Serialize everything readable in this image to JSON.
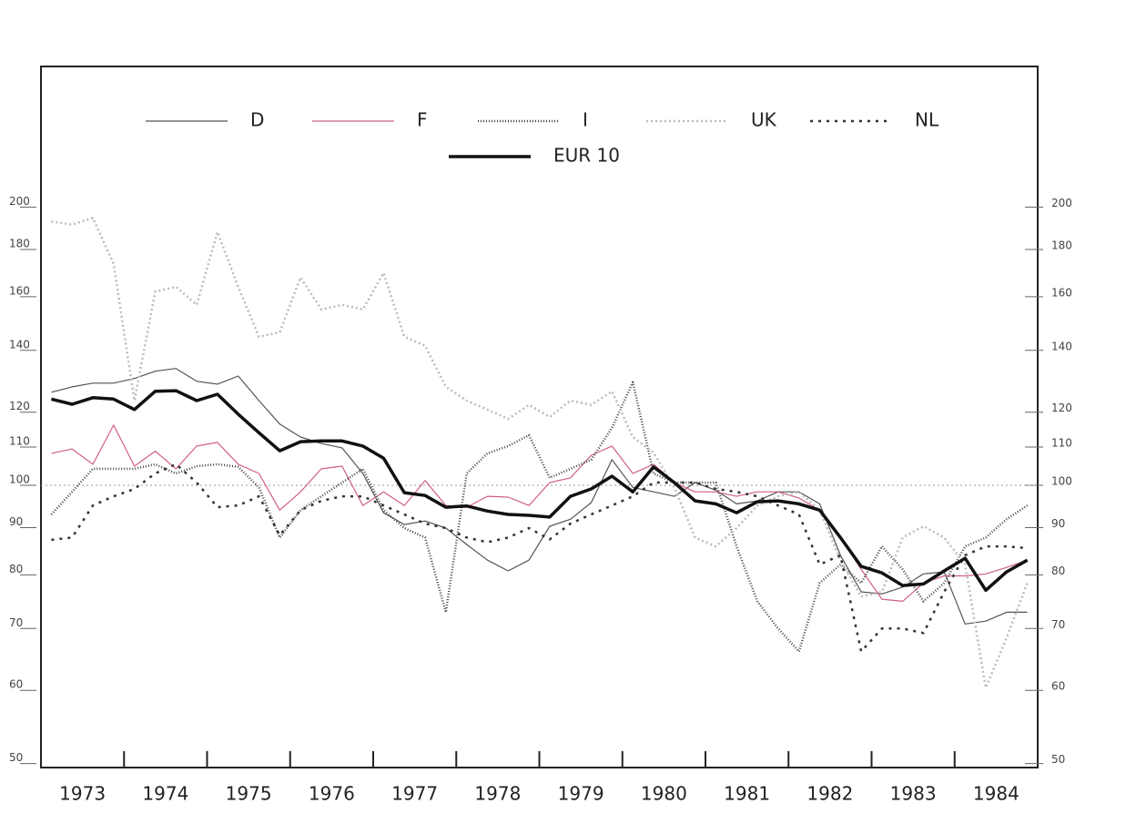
{
  "chart_data": {
    "type": "line",
    "x": [
      1973.125,
      1973.375,
      1973.625,
      1973.875,
      1974.125,
      1974.375,
      1974.625,
      1974.875,
      1975.125,
      1975.375,
      1975.625,
      1975.875,
      1976.125,
      1976.375,
      1976.625,
      1976.875,
      1977.125,
      1977.375,
      1977.625,
      1977.875,
      1978.125,
      1978.375,
      1978.625,
      1978.875,
      1979.125,
      1979.375,
      1979.625,
      1979.875,
      1980.125,
      1980.375,
      1980.625,
      1980.875,
      1981.125,
      1981.375,
      1981.625,
      1981.875,
      1982.125,
      1982.375,
      1982.625,
      1982.875,
      1983.125,
      1983.375,
      1983.625,
      1983.875,
      1984.125,
      1984.375,
      1984.625,
      1984.875
    ],
    "xlim": [
      1973,
      1985
    ],
    "xticks": [
      1973,
      1974,
      1975,
      1976,
      1977,
      1978,
      1979,
      1980,
      1981,
      1982,
      1983,
      1984
    ],
    "log_scale": true,
    "ylim": [
      49.5,
      284
    ],
    "yticks": [
      50,
      60,
      70,
      80,
      90,
      100,
      110,
      120,
      140,
      160,
      180,
      200
    ],
    "reference_line": 100,
    "series": [
      {
        "name": "D",
        "color": "#555555",
        "style": "solid",
        "values": [
          126.1,
          127.8,
          129,
          129,
          130.5,
          132.9,
          133.8,
          129.6,
          128.7,
          131.3,
          123.5,
          116.5,
          112.8,
          111,
          109.8,
          103,
          93.4,
          90.7,
          91.5,
          89.9,
          86.3,
          83,
          80.8,
          83,
          90.3,
          91.9,
          95.8,
          106.6,
          99.5,
          98.4,
          97.3,
          100.7,
          98.8,
          95.5,
          96.2,
          98.4,
          98.4,
          95.5,
          84,
          76.7,
          76.3,
          77.6,
          80.2,
          80.6,
          70.8,
          71.3,
          72.9,
          72.9
        ]
      },
      {
        "name": "F",
        "color": "#d0607f",
        "style": "solid",
        "values": [
          108.3,
          109.5,
          105.4,
          116.2,
          104.9,
          108.9,
          104.2,
          110.3,
          111.3,
          105.4,
          103,
          94,
          98.4,
          104.2,
          104.9,
          95.1,
          98.4,
          95.1,
          101.2,
          95.1,
          94.7,
          97.3,
          97.1,
          95.1,
          100.7,
          101.9,
          107.8,
          110.3,
          103,
          105.4,
          100.7,
          98.4,
          98.4,
          97.3,
          98.4,
          98.4,
          96.9,
          94,
          87.8,
          81.1,
          75.3,
          74.9,
          78.4,
          79.8,
          79.8,
          80.2,
          81.5,
          83
        ]
      },
      {
        "name": "I",
        "color": "#444444",
        "style": "dense",
        "values": [
          93,
          98.4,
          104.2,
          104.2,
          104.2,
          105.4,
          103,
          104.9,
          105.4,
          104.7,
          99.5,
          87.8,
          94,
          97.3,
          100.7,
          104.2,
          94,
          89.9,
          87.8,
          72.9,
          103,
          108.3,
          110.3,
          113.3,
          101.9,
          104.2,
          106.6,
          115.4,
          129.3,
          103,
          100.7,
          100.7,
          100.7,
          85.9,
          74.9,
          70,
          66.1,
          78.4,
          82.1,
          78.4,
          85.9,
          81.1,
          74.9,
          78.4,
          85.9,
          87.8,
          91.9,
          95.1
        ]
      },
      {
        "name": "UK",
        "color": "#bbbbbb",
        "style": "dotted",
        "values": [
          193,
          191.5,
          194.7,
          173.7,
          123.5,
          162,
          164,
          156.8,
          188,
          164,
          144.8,
          146.5,
          167.9,
          155,
          156.8,
          155,
          169.8,
          144.8,
          141.6,
          127.8,
          123.5,
          120.8,
          118,
          122.2,
          118.6,
          123.5,
          122.2,
          126.4,
          112.8,
          108.5,
          99.5,
          87.8,
          85.9,
          89.9,
          95.1,
          97.3,
          98.4,
          94,
          83,
          75.8,
          76.7,
          87.8,
          90.3,
          87.8,
          82.1,
          60.4,
          68.4,
          78.4
        ]
      },
      {
        "name": "NL",
        "color": "#333333",
        "style": "sparse",
        "values": [
          87.3,
          87.8,
          95.1,
          97.3,
          99.1,
          103,
          105.4,
          100.7,
          94.7,
          95.1,
          97.3,
          88.3,
          94,
          96.2,
          97.3,
          97.3,
          95.1,
          93,
          90.9,
          89.9,
          87.8,
          86.8,
          87.8,
          89.9,
          87.4,
          90.9,
          93,
          95.1,
          97.3,
          100.7,
          100.7,
          100.7,
          99.1,
          98.4,
          97.3,
          95.1,
          93,
          82.1,
          84,
          66.1,
          70,
          70,
          69.2,
          76.7,
          84,
          85.9,
          85.9,
          85.5
        ]
      },
      {
        "name": "EUR 10",
        "color": "#111111",
        "style": "thick",
        "values": [
          124,
          122.4,
          124.4,
          124,
          120.8,
          126.4,
          126.6,
          123.5,
          125.5,
          119.4,
          114,
          109,
          111.5,
          111.7,
          111.7,
          110.3,
          107,
          98.2,
          97.5,
          94.7,
          95,
          93.8,
          93,
          92.8,
          92.4,
          97.3,
          99.1,
          102.3,
          98.4,
          104.7,
          100.7,
          96.2,
          95.5,
          93.4,
          96,
          96.2,
          95.5,
          94,
          87.8,
          81.7,
          80.4,
          77.9,
          78.2,
          80.8,
          83.4,
          77,
          80.6,
          83
        ]
      }
    ]
  }
}
